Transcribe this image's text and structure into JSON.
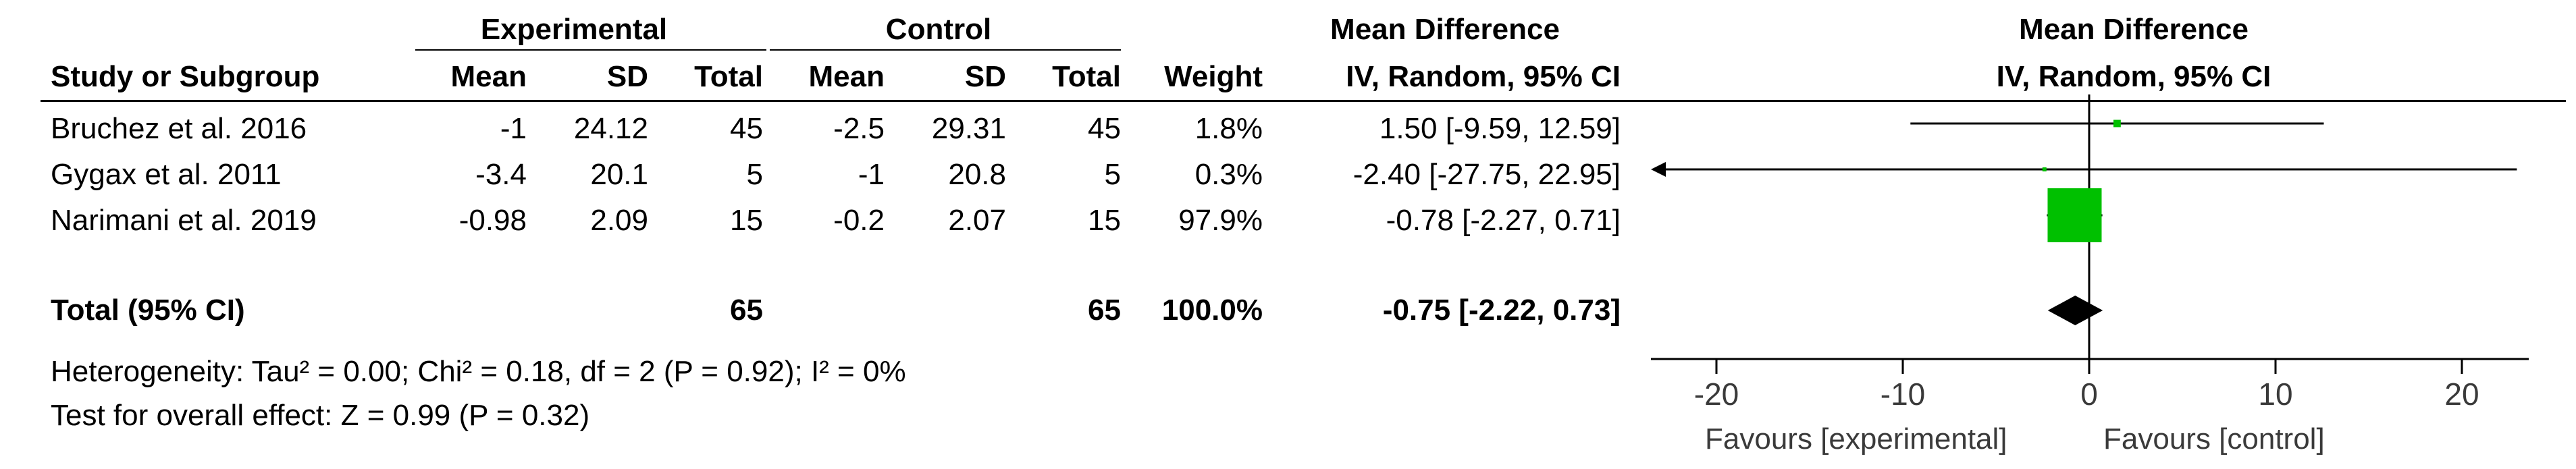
{
  "headers": {
    "group_experimental": "Experimental",
    "group_control": "Control",
    "md_col_title": "Mean Difference",
    "md_col_method": "IV, Random, 95% CI",
    "plot_title": "Mean Difference",
    "plot_method": "IV, Random, 95% CI",
    "study": "Study or Subgroup",
    "mean": "Mean",
    "sd": "SD",
    "total": "Total",
    "weight": "Weight"
  },
  "studies": [
    {
      "name": "Bruchez et al. 2016",
      "e_mean": "-1",
      "e_sd": "24.12",
      "e_total": "45",
      "c_mean": "-2.5",
      "c_sd": "29.31",
      "c_total": "45",
      "weight": "1.8%",
      "ci_text": "1.50 [-9.59, 12.59]"
    },
    {
      "name": "Gygax et al. 2011",
      "e_mean": "-3.4",
      "e_sd": "20.1",
      "e_total": "5",
      "c_mean": "-1",
      "c_sd": "20.8",
      "c_total": "5",
      "weight": "0.3%",
      "ci_text": "-2.40 [-27.75, 22.95]"
    },
    {
      "name": "Narimani et al. 2019",
      "e_mean": "-0.98",
      "e_sd": "2.09",
      "e_total": "15",
      "c_mean": "-0.2",
      "c_sd": "2.07",
      "c_total": "15",
      "weight": "97.9%",
      "ci_text": "-0.78 [-2.27, 0.71]"
    }
  ],
  "total": {
    "label": "Total (95% CI)",
    "e_total": "65",
    "c_total": "65",
    "weight": "100.0%",
    "ci_text": "-0.75 [-2.22, 0.73]"
  },
  "heterogeneity": "Heterogeneity: Tau² = 0.00; Chi² = 0.18, df = 2 (P = 0.92); I² = 0%",
  "overall_effect": "Test for overall effect: Z = 0.99 (P = 0.32)",
  "favours_left": "Favours [experimental]",
  "favours_right": "Favours [control]",
  "colors": {
    "study_marker": "#00c000",
    "pooled_diamond": "#000000",
    "line": "#000000",
    "axis_text": "#3a3a3a"
  },
  "chart_data": {
    "type": "forest",
    "xlim": [
      -20,
      20
    ],
    "ticks": [
      -20,
      -10,
      0,
      10,
      20
    ],
    "tick_labels": [
      "-20",
      "-10",
      "0",
      "10",
      "20"
    ],
    "studies": [
      {
        "name": "Bruchez et al. 2016",
        "md": 1.5,
        "lo": -9.59,
        "hi": 12.59,
        "weight": 1.8
      },
      {
        "name": "Gygax et al. 2011",
        "md": -2.4,
        "lo": -27.75,
        "hi": 22.95,
        "weight": 0.3
      },
      {
        "name": "Narimani et al. 2019",
        "md": -0.78,
        "lo": -2.27,
        "hi": 0.71,
        "weight": 97.9
      }
    ],
    "pooled": {
      "md": -0.75,
      "lo": -2.22,
      "hi": 0.73
    }
  }
}
